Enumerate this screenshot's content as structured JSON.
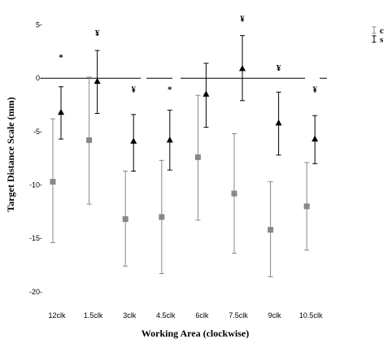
{
  "chart_data": {
    "type": "scatter",
    "title": "",
    "xlabel": "Working Area (clockwise)",
    "ylabel": "Target Distance Scale (mm)",
    "ylim": [
      -21,
      5.5
    ],
    "yticks": [
      5,
      0,
      -5,
      -10,
      -15,
      -20
    ],
    "ytick_labels": [
      "5-",
      "0-",
      "-5-",
      "-10-",
      "-15-",
      "-20-"
    ],
    "categories": [
      "12clk",
      "1.5clk",
      "3clk",
      "4.5clk",
      "6clk",
      "7.5clk",
      "9clk",
      "10.5clk"
    ],
    "grid": false,
    "legend": "top-right",
    "reference_line_y": 0,
    "series": [
      {
        "name": "c",
        "marker": "square",
        "color": "#888888",
        "values": [
          -9.7,
          -5.8,
          -13.2,
          -13.0,
          -7.4,
          -10.8,
          -14.2,
          -12.0
        ],
        "lower": [
          -15.4,
          -11.8,
          -17.6,
          -18.3,
          -13.3,
          -16.4,
          -18.6,
          -16.1
        ],
        "upper": [
          -3.8,
          0.1,
          -8.7,
          -7.7,
          -1.6,
          -5.2,
          -9.7,
          -7.9
        ]
      },
      {
        "name": "s",
        "marker": "triangle",
        "color": "#000000",
        "values": [
          -3.2,
          -0.3,
          -5.9,
          -5.8,
          -1.5,
          0.9,
          -4.2,
          -5.7
        ],
        "lower": [
          -5.7,
          -3.3,
          -8.7,
          -8.6,
          -4.6,
          -2.1,
          -7.2,
          -8.0
        ],
        "upper": [
          -0.8,
          2.6,
          -3.4,
          -3.0,
          1.4,
          4.0,
          -1.3,
          -3.5
        ]
      }
    ],
    "significance_marks": [
      {
        "category": "12clk",
        "label": "*",
        "y": 2.0
      },
      {
        "category": "1.5clk",
        "label": "¥",
        "y": 4.3
      },
      {
        "category": "3clk",
        "label": "¥",
        "y": -1.0
      },
      {
        "category": "4.5clk",
        "label": "*",
        "y": -1.0
      },
      {
        "category": "7.5clk",
        "label": "¥",
        "y": 5.6
      },
      {
        "category": "9clk",
        "label": "¥",
        "y": 1.0
      },
      {
        "category": "10.5clk",
        "label": "¥",
        "y": -1.0
      }
    ]
  }
}
